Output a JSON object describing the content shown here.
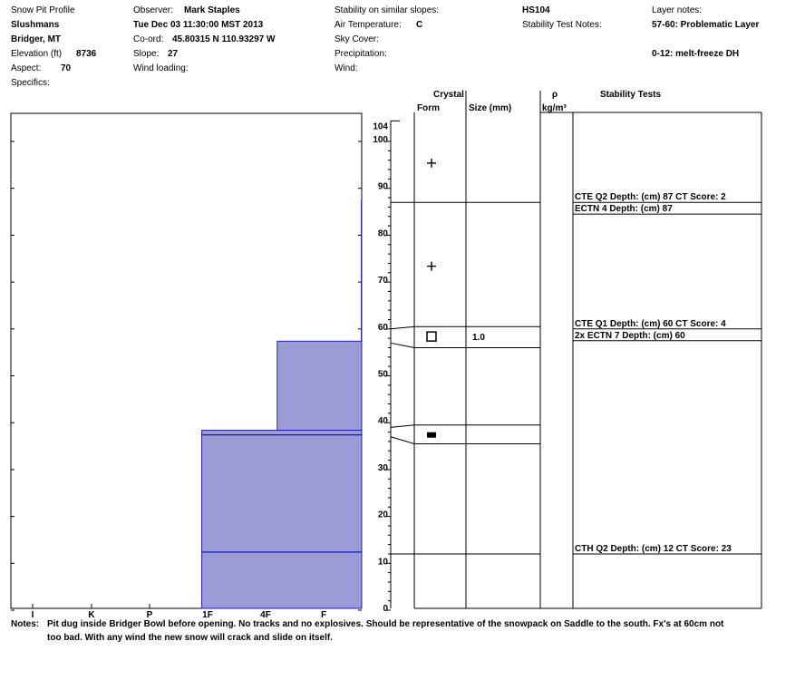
{
  "header": {
    "col1": {
      "title": "Snow Pit Profile",
      "location": "Slushmans",
      "region": "Bridger, MT",
      "elevation_label": "Elevation (ft)",
      "elevation_value": "8736",
      "aspect_label": "Aspect:",
      "aspect_value": "70",
      "specifics_label": "Specifics:"
    },
    "col2": {
      "observer_label": "Observer:",
      "observer_value": "Mark Staples",
      "datetime": "Tue Dec 03 11:30:00 MST 2013",
      "coord_label": "Co-ord:",
      "coord_value": "45.80315 N 110.93297 W",
      "slope_label": "Slope:",
      "slope_value": "27",
      "wind_loading_label": "Wind loading:"
    },
    "col3": {
      "stability_label": "Stability on similar slopes:",
      "air_temp_label": "Air Temperature:",
      "air_temp_value": "C",
      "sky_cover_label": "Sky Cover:",
      "precip_label": "Precipitation:",
      "wind_label": "Wind:"
    },
    "col4": {
      "hs": "HS104",
      "stability_notes_label": "Stability Test Notes:"
    },
    "col5": {
      "layer_notes_label": "Layer notes:",
      "layer_note_1": "57-60: Problematic Layer",
      "layer_note_2": "0-12: melt-freeze DH"
    }
  },
  "columns": {
    "crystal": "Crystal",
    "form": "Form",
    "size": "Size (mm)",
    "rho": "ρ",
    "density_unit": "kg/m³",
    "stability_tests": "Stability Tests"
  },
  "chart_data": {
    "type": "snow-pit-profile",
    "height_axis": {
      "min": 0,
      "max": 104,
      "unit": "cm",
      "ticks": [
        0,
        10,
        20,
        30,
        40,
        50,
        60,
        70,
        80,
        90,
        100,
        104
      ]
    },
    "hardness_axis": {
      "ticks": [
        "I",
        "K",
        "P",
        "1F",
        "4F",
        "F"
      ]
    },
    "hardness_layers": [
      {
        "bottom": 87,
        "top": 104,
        "hardness": 6.3
      },
      {
        "bottom": 57,
        "top": 87,
        "hardness": 5.65
      },
      {
        "bottom": 38,
        "top": 57,
        "hardness": 4.2
      },
      {
        "bottom": 0,
        "top": 38,
        "hardness": 2.9
      }
    ],
    "layer_lines": [
      {
        "height": 60,
        "color": "#dd0000"
      },
      {
        "height": 37,
        "color": "#0000cc"
      },
      {
        "height": 12,
        "color": "#0000cc"
      }
    ],
    "layer_boundaries": [
      {
        "left": 87,
        "right": 87
      },
      {
        "left": 60,
        "right": 60.5
      },
      {
        "left": 57,
        "right": 56
      },
      {
        "left": 39,
        "right": 39.5
      },
      {
        "left": 37,
        "right": 35.5
      },
      {
        "left": 12,
        "right": 12
      }
    ],
    "crystals": [
      {
        "height": 95,
        "form": "plus"
      },
      {
        "height": 73,
        "form": "plus"
      },
      {
        "height": 58,
        "form": "square",
        "size": "1.0"
      },
      {
        "height": 37,
        "form": "bar"
      }
    ],
    "stability_tests": [
      {
        "height": 87,
        "text": "CTE Q2 Depth: (cm) 87 CT Score: 2",
        "box_to": 84.5
      },
      {
        "height": 87,
        "text": "ECTN 4  Depth: (cm) 87"
      },
      {
        "height": 60,
        "text": "CTE Q1 Depth: (cm) 60 CT Score: 4",
        "box_to": 57.5
      },
      {
        "height": 60,
        "text": "2x ECTN 7  Depth: (cm) 60"
      },
      {
        "height": 12,
        "text": "CTH Q2 Depth: (cm) 12 CT Score: 23"
      }
    ]
  },
  "notes": {
    "label": "Notes:",
    "line1": "Pit dug inside Bridger Bowl before opening. No tracks and no explosives. Should be representative of the snowpack on Saddle to the south. Fx's at 60cm not",
    "line2": "too bad. With any wind the new snow will crack and slide on itself."
  }
}
